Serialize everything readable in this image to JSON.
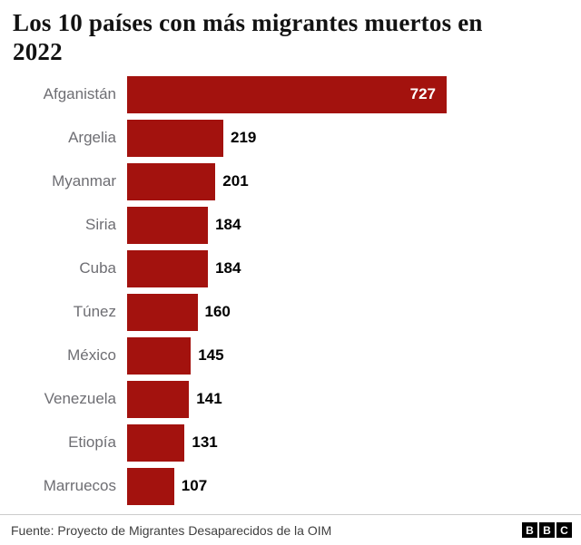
{
  "title": "Los 10 países con más migrantes muertos en 2022",
  "chart_data": {
    "type": "bar",
    "orientation": "horizontal",
    "title": "Los 10 países con más migrantes muertos en 2022",
    "categories": [
      "Afganistán",
      "Argelia",
      "Myanmar",
      "Siria",
      "Cuba",
      "Túnez",
      "México",
      "Venezuela",
      "Etiopía",
      "Marruecos"
    ],
    "values": [
      727,
      219,
      201,
      184,
      184,
      160,
      145,
      141,
      131,
      107
    ],
    "xlabel": "",
    "ylabel": "",
    "xlim": [
      0,
      760
    ],
    "grid": false,
    "legend": false,
    "value_labels": true,
    "value_label_inside_for_max": true
  },
  "colors": {
    "bar": "#a3120e",
    "category_label": "#6e6e73",
    "value_label": "#000000",
    "value_label_inside": "#ffffff",
    "divider": "#cccccc",
    "footer_text": "#404040",
    "logo_bg": "#000000"
  },
  "footer": {
    "source": "Fuente: Proyecto de Migrantes Desaparecidos de la OIM",
    "logo_letters": [
      "B",
      "B",
      "C"
    ]
  }
}
